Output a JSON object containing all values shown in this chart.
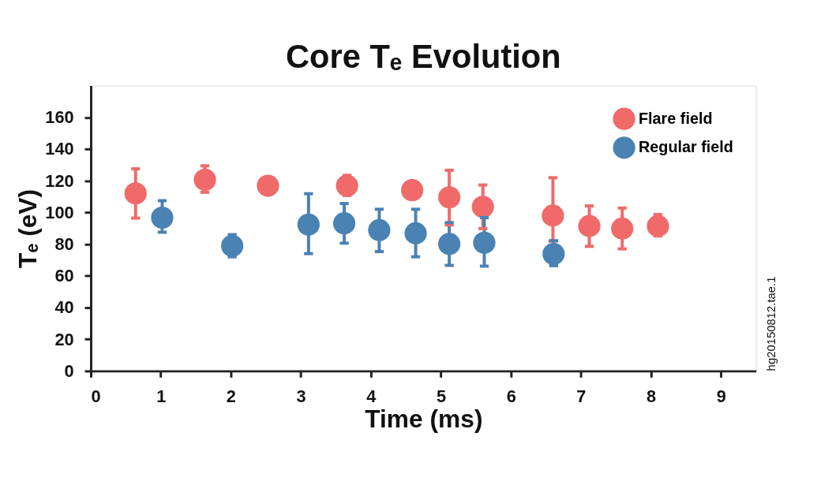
{
  "chart_data": {
    "type": "scatter",
    "title": "Core Tₑ Evolution",
    "xlabel": "Time (ms)",
    "ylabel": "Tₑ (eV)",
    "xlim": [
      0,
      9.5
    ],
    "xticks": [
      0,
      1,
      2,
      3,
      4,
      5,
      6,
      7,
      8,
      9
    ],
    "ylim": [
      0,
      180
    ],
    "yticks": [
      0,
      20,
      40,
      60,
      80,
      100,
      120,
      140,
      160
    ],
    "grid": false,
    "legend": "top right",
    "marker": "circle",
    "annotations": [
      "hg20150812.tae.1"
    ],
    "series": [
      {
        "name": "Flare field",
        "color": "#f06a6a",
        "x": [
          0.64,
          1.63,
          2.53,
          3.66,
          4.59,
          5.12,
          5.6,
          6.6,
          7.12,
          7.59,
          8.1
        ],
        "values": [
          112,
          120.6,
          116.8,
          116.8,
          114,
          109.5,
          103.5,
          98,
          91.4,
          89.8,
          91.4
        ],
        "errors": [
          [
            96.4,
            127.5
          ],
          [
            112.7,
            129.4
          ],
          null,
          [
            110.7,
            123.4
          ],
          null,
          [
            92.1,
            126.6
          ],
          [
            89.8,
            117.3
          ],
          [
            81.9,
            121.9
          ],
          [
            78.6,
            104.1
          ],
          [
            77,
            102.8
          ],
          [
            85.2,
            98.7
          ]
        ]
      },
      {
        "name": "Regular field",
        "color": "#4a82b4",
        "x": [
          1.02,
          2.02,
          3.11,
          3.62,
          4.12,
          4.64,
          5.12,
          5.62,
          6.61
        ],
        "values": [
          96.7,
          78.9,
          92.3,
          93.1,
          88.8,
          86.8,
          80.1,
          80.9,
          73.8
        ],
        "errors": [
          [
            87.5,
            107.4
          ],
          [
            72,
            86
          ],
          [
            74,
            111.8
          ],
          [
            80.6,
            105.6
          ],
          [
            75.3,
            102
          ],
          [
            72,
            102
          ],
          [
            66.6,
            93.6
          ],
          [
            66.1,
            96.7
          ],
          [
            66.4,
            82.2
          ]
        ]
      }
    ]
  }
}
